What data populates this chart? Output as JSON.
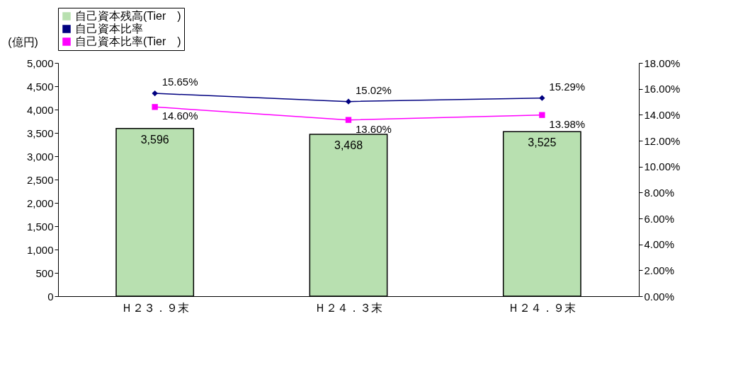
{
  "chart_data": {
    "type": "bar",
    "ylabel": "(億円)",
    "categories": [
      "Ｈ２３．９末",
      "Ｈ２４．３末",
      "Ｈ２４．９末"
    ],
    "series": [
      {
        "name": "自己資本残高(Tier　)",
        "color": "#b8e0b0",
        "values": [
          3596,
          3468,
          3525
        ],
        "value_labels": [
          "3,596",
          "3,468",
          "3,525"
        ]
      },
      {
        "name": "自己資本比率",
        "type": "line",
        "axis": "y2",
        "marker": "diamond",
        "color": "#000080",
        "values": [
          15.65,
          15.02,
          15.29
        ],
        "value_labels": [
          "15.65%",
          "15.02%",
          "15.29%"
        ]
      },
      {
        "name": "自己資本比率(Tier　)",
        "type": "line",
        "axis": "y2",
        "marker": "square",
        "color": "#ff00ff",
        "values": [
          14.6,
          13.6,
          13.98
        ],
        "value_labels": [
          "14.60%",
          "13.60%",
          "13.98%"
        ]
      }
    ],
    "ylim": [
      0,
      5000
    ],
    "yticks": [
      {
        "value": 0,
        "label": "0"
      },
      {
        "value": 500,
        "label": "500"
      },
      {
        "value": 1000,
        "label": "1,000"
      },
      {
        "value": 1500,
        "label": "1,500"
      },
      {
        "value": 2000,
        "label": "2,000"
      },
      {
        "value": 2500,
        "label": "2,500"
      },
      {
        "value": 3000,
        "label": "3,000"
      },
      {
        "value": 3500,
        "label": "3,500"
      },
      {
        "value": 4000,
        "label": "4,000"
      },
      {
        "value": 4500,
        "label": "4,500"
      },
      {
        "value": 5000,
        "label": "5,000"
      }
    ],
    "y2lim": [
      0,
      18
    ],
    "y2ticks": [
      {
        "value": 0,
        "label": "0.00%"
      },
      {
        "value": 2,
        "label": "2.00%"
      },
      {
        "value": 4,
        "label": "4.00%"
      },
      {
        "value": 6,
        "label": "6.00%"
      },
      {
        "value": 8,
        "label": "8.00%"
      },
      {
        "value": 10,
        "label": "10.00%"
      },
      {
        "value": 12,
        "label": "12.00%"
      },
      {
        "value": 14,
        "label": "14.00%"
      },
      {
        "value": 16,
        "label": "16.00%"
      },
      {
        "value": 18,
        "label": "18.00%"
      }
    ],
    "grid": false,
    "legend": "top"
  }
}
